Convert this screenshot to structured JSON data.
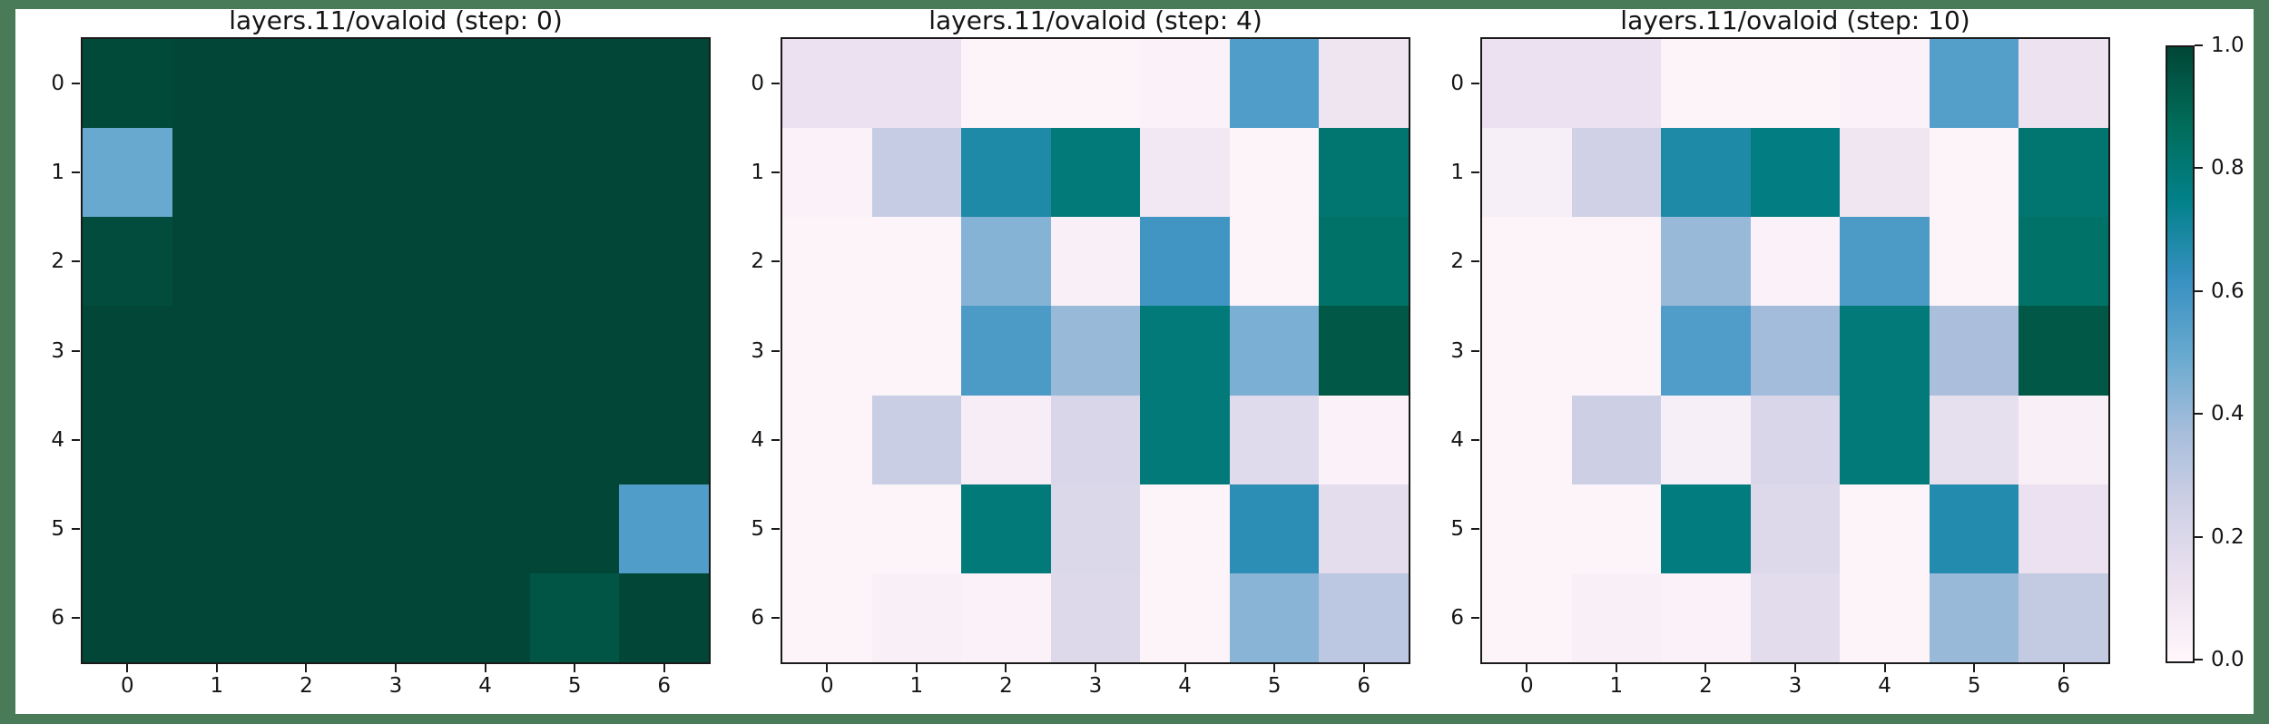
{
  "figure": {
    "frame_color": "#4a7b59",
    "background_color": "#ffffff",
    "text_color": "#151515"
  },
  "chart_data": [
    {
      "type": "heatmap",
      "title": "layers.11/ovaloid (step: 0)",
      "step": 0,
      "x_ticks": [
        "0",
        "1",
        "2",
        "3",
        "4",
        "5",
        "6"
      ],
      "y_ticks": [
        "0",
        "1",
        "2",
        "3",
        "4",
        "5",
        "6"
      ],
      "vmin": 0.0,
      "vmax": 1.0,
      "colormap": "PuBuGn",
      "values": [
        [
          0.99,
          1.0,
          1.0,
          1.0,
          1.0,
          1.0,
          1.0
        ],
        [
          0.5,
          1.0,
          1.0,
          1.0,
          1.0,
          1.0,
          1.0
        ],
        [
          0.98,
          1.0,
          1.0,
          1.0,
          1.0,
          1.0,
          1.0
        ],
        [
          1.0,
          1.0,
          1.0,
          1.0,
          1.0,
          1.0,
          1.0
        ],
        [
          1.0,
          1.0,
          1.0,
          1.0,
          1.0,
          1.0,
          1.0
        ],
        [
          1.0,
          1.0,
          1.0,
          1.0,
          1.0,
          1.0,
          0.56
        ],
        [
          1.0,
          1.0,
          1.0,
          1.0,
          1.0,
          0.95,
          1.0
        ]
      ]
    },
    {
      "type": "heatmap",
      "title": "layers.11/ovaloid (step: 4)",
      "step": 4,
      "x_ticks": [
        "0",
        "1",
        "2",
        "3",
        "4",
        "5",
        "6"
      ],
      "y_ticks": [
        "0",
        "1",
        "2",
        "3",
        "4",
        "5",
        "6"
      ],
      "vmin": 0.0,
      "vmax": 1.0,
      "colormap": "PuBuGn",
      "values": [
        [
          0.13,
          0.13,
          0.02,
          0.02,
          0.03,
          0.56,
          0.11
        ],
        [
          0.03,
          0.28,
          0.68,
          0.79,
          0.09,
          0.02,
          0.82
        ],
        [
          0.02,
          0.02,
          0.44,
          0.04,
          0.6,
          0.02,
          0.84
        ],
        [
          0.02,
          0.02,
          0.57,
          0.4,
          0.79,
          0.46,
          0.94
        ],
        [
          0.02,
          0.27,
          0.06,
          0.21,
          0.79,
          0.18,
          0.03
        ],
        [
          0.02,
          0.02,
          0.79,
          0.2,
          0.02,
          0.65,
          0.16
        ],
        [
          0.02,
          0.04,
          0.03,
          0.19,
          0.02,
          0.43,
          0.31
        ]
      ]
    },
    {
      "type": "heatmap",
      "title": "layers.11/ovaloid (step: 10)",
      "step": 10,
      "x_ticks": [
        "0",
        "1",
        "2",
        "3",
        "4",
        "5",
        "6"
      ],
      "y_ticks": [
        "0",
        "1",
        "2",
        "3",
        "4",
        "5",
        "6"
      ],
      "vmin": 0.0,
      "vmax": 1.0,
      "colormap": "PuBuGn",
      "values": [
        [
          0.13,
          0.13,
          0.02,
          0.02,
          0.03,
          0.55,
          0.12
        ],
        [
          0.05,
          0.25,
          0.68,
          0.77,
          0.1,
          0.02,
          0.82
        ],
        [
          0.02,
          0.02,
          0.4,
          0.03,
          0.57,
          0.02,
          0.84
        ],
        [
          0.02,
          0.02,
          0.56,
          0.38,
          0.79,
          0.36,
          0.94
        ],
        [
          0.02,
          0.26,
          0.05,
          0.21,
          0.79,
          0.15,
          0.04
        ],
        [
          0.02,
          0.02,
          0.78,
          0.19,
          0.02,
          0.67,
          0.13
        ],
        [
          0.02,
          0.04,
          0.03,
          0.17,
          0.02,
          0.4,
          0.29
        ]
      ]
    }
  ],
  "colorbar": {
    "tick_labels": [
      "1.0",
      "0.8",
      "0.6",
      "0.4",
      "0.2",
      "0.0"
    ],
    "tick_values": [
      1.0,
      0.8,
      0.6,
      0.4,
      0.2,
      0.0
    ],
    "colormap_stops": [
      "#fff7fb",
      "#ece2f0",
      "#d0d1e6",
      "#a6bddb",
      "#67a9cf",
      "#3690c0",
      "#02818a",
      "#016c59",
      "#014636"
    ]
  }
}
